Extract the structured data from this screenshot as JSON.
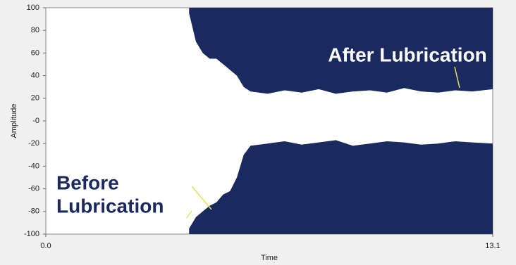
{
  "chart_data": {
    "type": "area",
    "xlabel": "Time",
    "ylabel": "Amplitude",
    "color": "#1b2a5e",
    "x": [
      4.2,
      4.4,
      4.6,
      4.8,
      5.0,
      5.2,
      5.4,
      5.6,
      5.8,
      6.0,
      6.5,
      7.0,
      7.5,
      8.0,
      8.5,
      9.0,
      9.5,
      10.0,
      10.5,
      11.0,
      11.5,
      12.0,
      12.5,
      13.1
    ],
    "series": [
      {
        "values": [
          95,
          70,
          60,
          55,
          55,
          50,
          45,
          40,
          30,
          26,
          24,
          27,
          25,
          28,
          24,
          26,
          27,
          25,
          29,
          26,
          25,
          27,
          26,
          28
        ]
      },
      {
        "values": [
          -95,
          -85,
          -80,
          -75,
          -72,
          -65,
          -62,
          -50,
          -30,
          -22,
          -20,
          -18,
          -21,
          -19,
          -17,
          -22,
          -20,
          -18,
          -19,
          -21,
          -20,
          -18,
          -19,
          -20
        ]
      }
    ],
    "xlim": [
      0,
      13.1
    ],
    "xticks": [
      {
        "value": 0,
        "label": "0.0"
      },
      13.1
    ],
    "ylim": [
      -100,
      100
    ],
    "yticks": [
      100,
      80,
      60,
      40,
      20,
      {
        "value": 0,
        "label": "-0"
      },
      -20,
      -40,
      -60,
      -80,
      -100
    ],
    "annotations": [
      {
        "text": "After Lubrication"
      },
      {
        "lines": [
          "Before",
          "Lubrication"
        ]
      }
    ]
  }
}
